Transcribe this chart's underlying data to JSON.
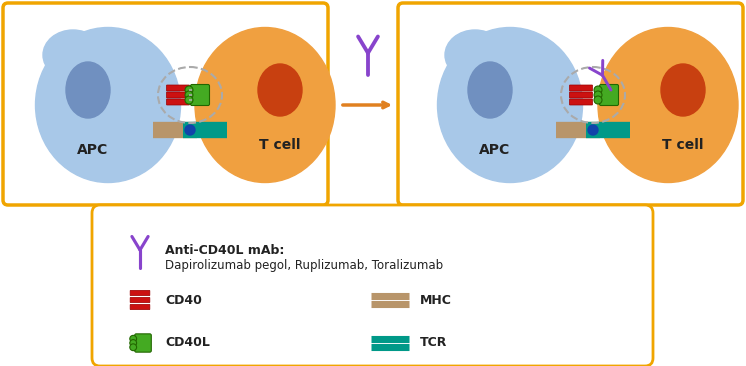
{
  "bg_color": "#ffffff",
  "box_color": "#f0a500",
  "apc_color_light": "#a8c8e8",
  "apc_color_dark": "#7aaac8",
  "tcell_color_light": "#f0a040",
  "tcell_color_dark": "#c07820",
  "nucleus_apc_color": "#7090c0",
  "nucleus_tcell_color": "#c84010",
  "cd40_color": "#cc1111",
  "cd40l_color": "#44aa22",
  "mhc_color": "#b8956a",
  "tcr_color": "#009988",
  "antibody_color": "#8844cc",
  "dashed_circle_color": "#aaaaaa",
  "arrow_color": "#e08020",
  "connector_color": "#1144aa",
  "text_color": "#222222",
  "apc_label": "APC",
  "tcell_label": "T cell",
  "legend_line1": "Anti-CD40L mAb:",
  "legend_line2": "Dapirolizumab pegol, Ruplizumab, Toralizumab",
  "legend_cd40": "CD40",
  "legend_cd40l": "CD40L",
  "legend_mhc": "MHC",
  "legend_tcr": "TCR"
}
